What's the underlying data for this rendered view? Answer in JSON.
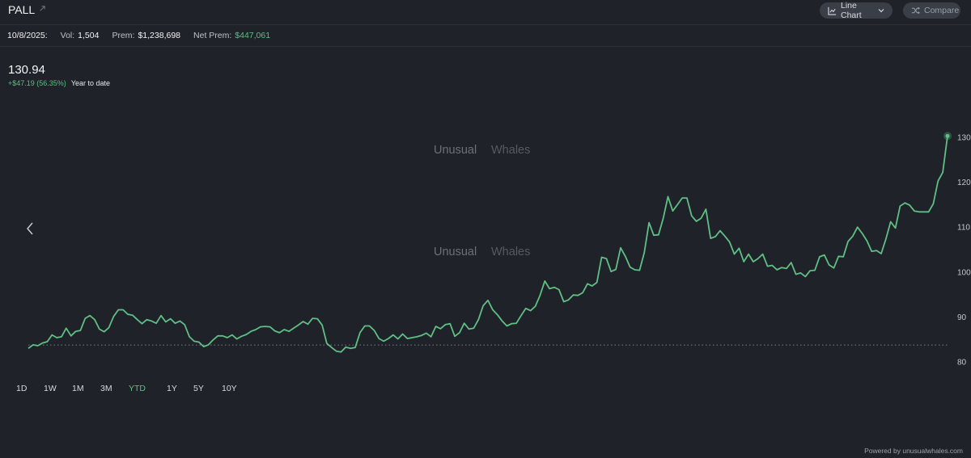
{
  "header": {
    "ticker": "PALL",
    "external_icon": "external-link-icon",
    "line_chart_label": "Line Chart",
    "compare_label": "Compare"
  },
  "stats": {
    "date": "10/8/2025:",
    "vol_label": "Vol:",
    "vol_value": "1,504",
    "prem_label": "Prem:",
    "prem_value": "$1,238,698",
    "net_prem_label": "Net Prem:",
    "net_prem_value": "$447,061"
  },
  "summary": {
    "price": "130.94",
    "change": "+$47.19 (56.35%)",
    "period": "Year to date"
  },
  "watermark": {
    "word1": "Unusual",
    "word2": "Whales"
  },
  "ranges": [
    "1D",
    "1W",
    "1M",
    "3M",
    "YTD",
    "1Y",
    "5Y",
    "10Y"
  ],
  "active_range": "YTD",
  "footer": {
    "powered": "Powered by unusualwhales.com"
  },
  "colors": {
    "line": "#5fbf84",
    "background": "#1f2229"
  },
  "chart_data": {
    "type": "line",
    "yticks": [
      130,
      120,
      110,
      100,
      90,
      80
    ],
    "ylim": [
      80,
      130
    ],
    "baseline": 83.75,
    "series": [
      {
        "values": [
          83,
          83.8,
          83.6,
          84.2,
          84.5,
          86,
          85.4,
          85.6,
          87.5,
          85.8,
          86.8,
          87,
          89.7,
          90.3,
          89.4,
          87.3,
          86.7,
          87.6,
          90.1,
          91.6,
          91.6,
          90.6,
          90.4,
          89.4,
          88.5,
          89.4,
          89.1,
          88.6,
          90.3,
          88.9,
          89.6,
          88.6,
          89.1,
          88.3,
          85.6,
          84.6,
          84.4,
          83.4,
          83.8,
          84.9,
          85.8,
          85.8,
          85.4,
          86,
          85.1,
          85.7,
          86.1,
          86.8,
          87.2,
          87.8,
          87.9,
          87.8,
          86.9,
          86.5,
          87.2,
          86.8,
          87.5,
          88.2,
          89,
          88.4,
          89.7,
          89.6,
          88.2,
          84.1,
          83.2,
          82.4,
          82.2,
          83.3,
          83,
          83.2,
          86.5,
          88,
          88,
          87,
          85.2,
          84.6,
          85.2,
          86,
          85.1,
          86.2,
          85.2,
          85.4,
          85.6,
          85.9,
          86.4,
          85.6,
          87.9,
          87.4,
          88.3,
          88.5,
          85.7,
          86.5,
          88.6,
          87.3,
          87.5,
          89.4,
          92.5,
          93.7,
          91.6,
          90.5,
          89.1,
          88,
          88.5,
          88.6,
          90.3,
          91.9,
          91.4,
          92.4,
          94.8,
          98,
          96.3,
          96.6,
          96.1,
          93.4,
          93.8,
          94.9,
          94.8,
          95.4,
          97.4,
          96.9,
          97.7,
          103.3,
          103,
          100.1,
          100.6,
          105.4,
          103.5,
          101.1,
          100.5,
          100.4,
          104.3,
          111,
          108.2,
          108.3,
          112,
          116.8,
          113.6,
          115,
          116.5,
          116.5,
          112.5,
          111.3,
          112,
          114,
          107.5,
          107.9,
          109.2,
          108,
          106.7,
          104,
          105.3,
          102.3,
          104,
          102.3,
          103,
          104,
          101.3,
          101.5,
          100.5,
          101,
          100.8,
          102.1,
          99.5,
          99.8,
          99,
          100.3,
          100.4,
          103.4,
          103.8,
          101.6,
          100.9,
          103.5,
          103.4,
          106.8,
          108,
          110,
          108.6,
          106.9,
          104.6,
          104.8,
          104.1,
          107.4,
          111.2,
          109.8,
          114.7,
          115.4,
          114.9,
          113.6,
          113.4,
          113.4,
          113.4,
          115.2,
          120.3,
          122.2,
          130.3
        ]
      }
    ]
  }
}
